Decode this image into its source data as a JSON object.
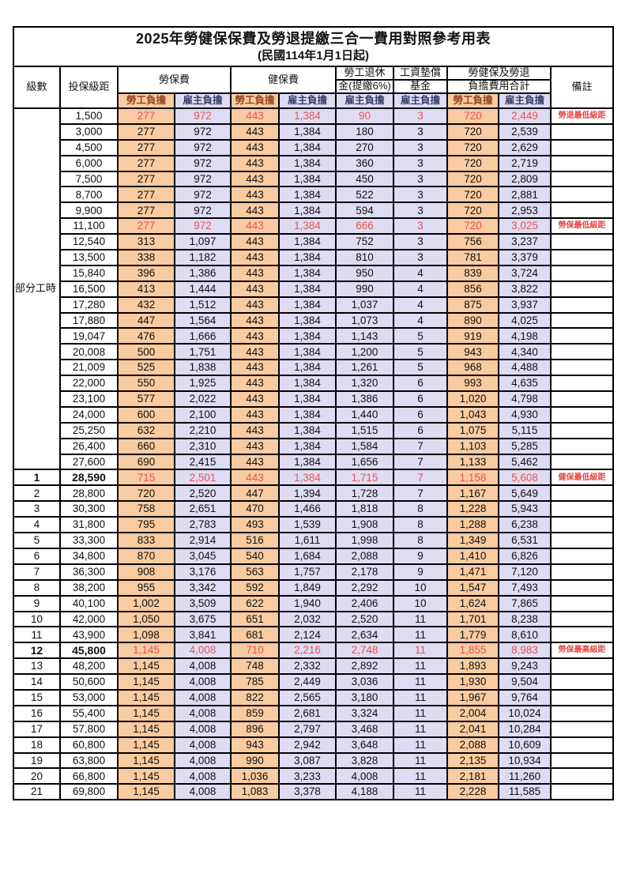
{
  "title": "2025年勞健保保費及勞退提繳三合一費用對照參考用表",
  "subtitle": "(民國114年1月1日起)",
  "header": {
    "level": "級數",
    "salary": "投保級距",
    "labor": "勞保費",
    "health": "健保費",
    "pension_line1": "勞工退休",
    "pension_line2": "金(提繳6%)",
    "fund_line1": "工資墊償",
    "fund_line2": "基金",
    "total_line1": "勞健保及勞退",
    "total_line2": "負擔費用合計",
    "remark": "備註",
    "worker": "勞工負擔",
    "employer": "雇主負擔"
  },
  "part_time_label": "部分工時",
  "part_time_span": 23,
  "colors": {
    "worker_bg": "#F9CBA0",
    "employer_bg": "#DEDCF2",
    "highlight_red": "#E85555",
    "remark_red": "#E84545",
    "header_worker_text": "#94421C",
    "header_employer_text": "#363C68",
    "border": "#000000"
  },
  "rows": [
    {
      "level": "",
      "salary": "1,500",
      "labor_w": "277",
      "labor_e": "972",
      "health_w": "443",
      "health_e": "1,384",
      "pension": "90",
      "fund": "3",
      "total_w": "720",
      "total_e": "2,449",
      "remark": "勞退最低級距",
      "hl": true,
      "bold": false
    },
    {
      "level": "",
      "salary": "3,000",
      "labor_w": "277",
      "labor_e": "972",
      "health_w": "443",
      "health_e": "1,384",
      "pension": "180",
      "fund": "3",
      "total_w": "720",
      "total_e": "2,539",
      "remark": "",
      "hl": false,
      "bold": false
    },
    {
      "level": "",
      "salary": "4,500",
      "labor_w": "277",
      "labor_e": "972",
      "health_w": "443",
      "health_e": "1,384",
      "pension": "270",
      "fund": "3",
      "total_w": "720",
      "total_e": "2,629",
      "remark": "",
      "hl": false,
      "bold": false
    },
    {
      "level": "",
      "salary": "6,000",
      "labor_w": "277",
      "labor_e": "972",
      "health_w": "443",
      "health_e": "1,384",
      "pension": "360",
      "fund": "3",
      "total_w": "720",
      "total_e": "2,719",
      "remark": "",
      "hl": false,
      "bold": false
    },
    {
      "level": "",
      "salary": "7,500",
      "labor_w": "277",
      "labor_e": "972",
      "health_w": "443",
      "health_e": "1,384",
      "pension": "450",
      "fund": "3",
      "total_w": "720",
      "total_e": "2,809",
      "remark": "",
      "hl": false,
      "bold": false
    },
    {
      "level": "",
      "salary": "8,700",
      "labor_w": "277",
      "labor_e": "972",
      "health_w": "443",
      "health_e": "1,384",
      "pension": "522",
      "fund": "3",
      "total_w": "720",
      "total_e": "2,881",
      "remark": "",
      "hl": false,
      "bold": false
    },
    {
      "level": "",
      "salary": "9,900",
      "labor_w": "277",
      "labor_e": "972",
      "health_w": "443",
      "health_e": "1,384",
      "pension": "594",
      "fund": "3",
      "total_w": "720",
      "total_e": "2,953",
      "remark": "",
      "hl": false,
      "bold": false
    },
    {
      "level": "",
      "salary": "11,100",
      "labor_w": "277",
      "labor_e": "972",
      "health_w": "443",
      "health_e": "1,384",
      "pension": "666",
      "fund": "3",
      "total_w": "720",
      "total_e": "3,025",
      "remark": "勞保最低級距",
      "hl": true,
      "bold": false
    },
    {
      "level": "",
      "salary": "12,540",
      "labor_w": "313",
      "labor_e": "1,097",
      "health_w": "443",
      "health_e": "1,384",
      "pension": "752",
      "fund": "3",
      "total_w": "756",
      "total_e": "3,237",
      "remark": "",
      "hl": false,
      "bold": false
    },
    {
      "level": "",
      "salary": "13,500",
      "labor_w": "338",
      "labor_e": "1,182",
      "health_w": "443",
      "health_e": "1,384",
      "pension": "810",
      "fund": "3",
      "total_w": "781",
      "total_e": "3,379",
      "remark": "",
      "hl": false,
      "bold": false
    },
    {
      "level": "",
      "salary": "15,840",
      "labor_w": "396",
      "labor_e": "1,386",
      "health_w": "443",
      "health_e": "1,384",
      "pension": "950",
      "fund": "4",
      "total_w": "839",
      "total_e": "3,724",
      "remark": "",
      "hl": false,
      "bold": false
    },
    {
      "level": "",
      "salary": "16,500",
      "labor_w": "413",
      "labor_e": "1,444",
      "health_w": "443",
      "health_e": "1,384",
      "pension": "990",
      "fund": "4",
      "total_w": "856",
      "total_e": "3,822",
      "remark": "",
      "hl": false,
      "bold": false
    },
    {
      "level": "",
      "salary": "17,280",
      "labor_w": "432",
      "labor_e": "1,512",
      "health_w": "443",
      "health_e": "1,384",
      "pension": "1,037",
      "fund": "4",
      "total_w": "875",
      "total_e": "3,937",
      "remark": "",
      "hl": false,
      "bold": false
    },
    {
      "level": "",
      "salary": "17,880",
      "labor_w": "447",
      "labor_e": "1,564",
      "health_w": "443",
      "health_e": "1,384",
      "pension": "1,073",
      "fund": "4",
      "total_w": "890",
      "total_e": "4,025",
      "remark": "",
      "hl": false,
      "bold": false
    },
    {
      "level": "",
      "salary": "19,047",
      "labor_w": "476",
      "labor_e": "1,666",
      "health_w": "443",
      "health_e": "1,384",
      "pension": "1,143",
      "fund": "5",
      "total_w": "919",
      "total_e": "4,198",
      "remark": "",
      "hl": false,
      "bold": false
    },
    {
      "level": "",
      "salary": "20,008",
      "labor_w": "500",
      "labor_e": "1,751",
      "health_w": "443",
      "health_e": "1,384",
      "pension": "1,200",
      "fund": "5",
      "total_w": "943",
      "total_e": "4,340",
      "remark": "",
      "hl": false,
      "bold": false
    },
    {
      "level": "",
      "salary": "21,009",
      "labor_w": "525",
      "labor_e": "1,838",
      "health_w": "443",
      "health_e": "1,384",
      "pension": "1,261",
      "fund": "5",
      "total_w": "968",
      "total_e": "4,488",
      "remark": "",
      "hl": false,
      "bold": false
    },
    {
      "level": "",
      "salary": "22,000",
      "labor_w": "550",
      "labor_e": "1,925",
      "health_w": "443",
      "health_e": "1,384",
      "pension": "1,320",
      "fund": "6",
      "total_w": "993",
      "total_e": "4,635",
      "remark": "",
      "hl": false,
      "bold": false
    },
    {
      "level": "",
      "salary": "23,100",
      "labor_w": "577",
      "labor_e": "2,022",
      "health_w": "443",
      "health_e": "1,384",
      "pension": "1,386",
      "fund": "6",
      "total_w": "1,020",
      "total_e": "4,798",
      "remark": "",
      "hl": false,
      "bold": false
    },
    {
      "level": "",
      "salary": "24,000",
      "labor_w": "600",
      "labor_e": "2,100",
      "health_w": "443",
      "health_e": "1,384",
      "pension": "1,440",
      "fund": "6",
      "total_w": "1,043",
      "total_e": "4,930",
      "remark": "",
      "hl": false,
      "bold": false
    },
    {
      "level": "",
      "salary": "25,250",
      "labor_w": "632",
      "labor_e": "2,210",
      "health_w": "443",
      "health_e": "1,384",
      "pension": "1,515",
      "fund": "6",
      "total_w": "1,075",
      "total_e": "5,115",
      "remark": "",
      "hl": false,
      "bold": false
    },
    {
      "level": "",
      "salary": "26,400",
      "labor_w": "660",
      "labor_e": "2,310",
      "health_w": "443",
      "health_e": "1,384",
      "pension": "1,584",
      "fund": "7",
      "total_w": "1,103",
      "total_e": "5,285",
      "remark": "",
      "hl": false,
      "bold": false
    },
    {
      "level": "",
      "salary": "27,600",
      "labor_w": "690",
      "labor_e": "2,415",
      "health_w": "443",
      "health_e": "1,384",
      "pension": "1,656",
      "fund": "7",
      "total_w": "1,133",
      "total_e": "5,462",
      "remark": "",
      "hl": false,
      "bold": false
    },
    {
      "level": "1",
      "salary": "28,590",
      "labor_w": "715",
      "labor_e": "2,501",
      "health_w": "443",
      "health_e": "1,384",
      "pension": "1,715",
      "fund": "7",
      "total_w": "1,158",
      "total_e": "5,608",
      "remark": "健保最低級距",
      "hl": true,
      "bold": true
    },
    {
      "level": "2",
      "salary": "28,800",
      "labor_w": "720",
      "labor_e": "2,520",
      "health_w": "447",
      "health_e": "1,394",
      "pension": "1,728",
      "fund": "7",
      "total_w": "1,167",
      "total_e": "5,649",
      "remark": "",
      "hl": false,
      "bold": false
    },
    {
      "level": "3",
      "salary": "30,300",
      "labor_w": "758",
      "labor_e": "2,651",
      "health_w": "470",
      "health_e": "1,466",
      "pension": "1,818",
      "fund": "8",
      "total_w": "1,228",
      "total_e": "5,943",
      "remark": "",
      "hl": false,
      "bold": false
    },
    {
      "level": "4",
      "salary": "31,800",
      "labor_w": "795",
      "labor_e": "2,783",
      "health_w": "493",
      "health_e": "1,539",
      "pension": "1,908",
      "fund": "8",
      "total_w": "1,288",
      "total_e": "6,238",
      "remark": "",
      "hl": false,
      "bold": false
    },
    {
      "level": "5",
      "salary": "33,300",
      "labor_w": "833",
      "labor_e": "2,914",
      "health_w": "516",
      "health_e": "1,611",
      "pension": "1,998",
      "fund": "8",
      "total_w": "1,349",
      "total_e": "6,531",
      "remark": "",
      "hl": false,
      "bold": false
    },
    {
      "level": "6",
      "salary": "34,800",
      "labor_w": "870",
      "labor_e": "3,045",
      "health_w": "540",
      "health_e": "1,684",
      "pension": "2,088",
      "fund": "9",
      "total_w": "1,410",
      "total_e": "6,826",
      "remark": "",
      "hl": false,
      "bold": false
    },
    {
      "level": "7",
      "salary": "36,300",
      "labor_w": "908",
      "labor_e": "3,176",
      "health_w": "563",
      "health_e": "1,757",
      "pension": "2,178",
      "fund": "9",
      "total_w": "1,471",
      "total_e": "7,120",
      "remark": "",
      "hl": false,
      "bold": false
    },
    {
      "level": "8",
      "salary": "38,200",
      "labor_w": "955",
      "labor_e": "3,342",
      "health_w": "592",
      "health_e": "1,849",
      "pension": "2,292",
      "fund": "10",
      "total_w": "1,547",
      "total_e": "7,493",
      "remark": "",
      "hl": false,
      "bold": false
    },
    {
      "level": "9",
      "salary": "40,100",
      "labor_w": "1,002",
      "labor_e": "3,509",
      "health_w": "622",
      "health_e": "1,940",
      "pension": "2,406",
      "fund": "10",
      "total_w": "1,624",
      "total_e": "7,865",
      "remark": "",
      "hl": false,
      "bold": false
    },
    {
      "level": "10",
      "salary": "42,000",
      "labor_w": "1,050",
      "labor_e": "3,675",
      "health_w": "651",
      "health_e": "2,032",
      "pension": "2,520",
      "fund": "11",
      "total_w": "1,701",
      "total_e": "8,238",
      "remark": "",
      "hl": false,
      "bold": false
    },
    {
      "level": "11",
      "salary": "43,900",
      "labor_w": "1,098",
      "labor_e": "3,841",
      "health_w": "681",
      "health_e": "2,124",
      "pension": "2,634",
      "fund": "11",
      "total_w": "1,779",
      "total_e": "8,610",
      "remark": "",
      "hl": false,
      "bold": false
    },
    {
      "level": "12",
      "salary": "45,800",
      "labor_w": "1,145",
      "labor_e": "4,008",
      "health_w": "710",
      "health_e": "2,216",
      "pension": "2,748",
      "fund": "11",
      "total_w": "1,855",
      "total_e": "8,983",
      "remark": "勞保最高級距",
      "hl": true,
      "bold": true
    },
    {
      "level": "13",
      "salary": "48,200",
      "labor_w": "1,145",
      "labor_e": "4,008",
      "health_w": "748",
      "health_e": "2,332",
      "pension": "2,892",
      "fund": "11",
      "total_w": "1,893",
      "total_e": "9,243",
      "remark": "",
      "hl": false,
      "bold": false
    },
    {
      "level": "14",
      "salary": "50,600",
      "labor_w": "1,145",
      "labor_e": "4,008",
      "health_w": "785",
      "health_e": "2,449",
      "pension": "3,036",
      "fund": "11",
      "total_w": "1,930",
      "total_e": "9,504",
      "remark": "",
      "hl": false,
      "bold": false
    },
    {
      "level": "15",
      "salary": "53,000",
      "labor_w": "1,145",
      "labor_e": "4,008",
      "health_w": "822",
      "health_e": "2,565",
      "pension": "3,180",
      "fund": "11",
      "total_w": "1,967",
      "total_e": "9,764",
      "remark": "",
      "hl": false,
      "bold": false
    },
    {
      "level": "16",
      "salary": "55,400",
      "labor_w": "1,145",
      "labor_e": "4,008",
      "health_w": "859",
      "health_e": "2,681",
      "pension": "3,324",
      "fund": "11",
      "total_w": "2,004",
      "total_e": "10,024",
      "remark": "",
      "hl": false,
      "bold": false
    },
    {
      "level": "17",
      "salary": "57,800",
      "labor_w": "1,145",
      "labor_e": "4,008",
      "health_w": "896",
      "health_e": "2,797",
      "pension": "3,468",
      "fund": "11",
      "total_w": "2,041",
      "total_e": "10,284",
      "remark": "",
      "hl": false,
      "bold": false
    },
    {
      "level": "18",
      "salary": "60,800",
      "labor_w": "1,145",
      "labor_e": "4,008",
      "health_w": "943",
      "health_e": "2,942",
      "pension": "3,648",
      "fund": "11",
      "total_w": "2,088",
      "total_e": "10,609",
      "remark": "",
      "hl": false,
      "bold": false
    },
    {
      "level": "19",
      "salary": "63,800",
      "labor_w": "1,145",
      "labor_e": "4,008",
      "health_w": "990",
      "health_e": "3,087",
      "pension": "3,828",
      "fund": "11",
      "total_w": "2,135",
      "total_e": "10,934",
      "remark": "",
      "hl": false,
      "bold": false
    },
    {
      "level": "20",
      "salary": "66,800",
      "labor_w": "1,145",
      "labor_e": "4,008",
      "health_w": "1,036",
      "health_e": "3,233",
      "pension": "4,008",
      "fund": "11",
      "total_w": "2,181",
      "total_e": "11,260",
      "remark": "",
      "hl": false,
      "bold": false
    },
    {
      "level": "21",
      "salary": "69,800",
      "labor_w": "1,145",
      "labor_e": "4,008",
      "health_w": "1,083",
      "health_e": "3,378",
      "pension": "4,188",
      "fund": "11",
      "total_w": "2,228",
      "total_e": "11,585",
      "remark": "",
      "hl": false,
      "bold": false
    }
  ]
}
